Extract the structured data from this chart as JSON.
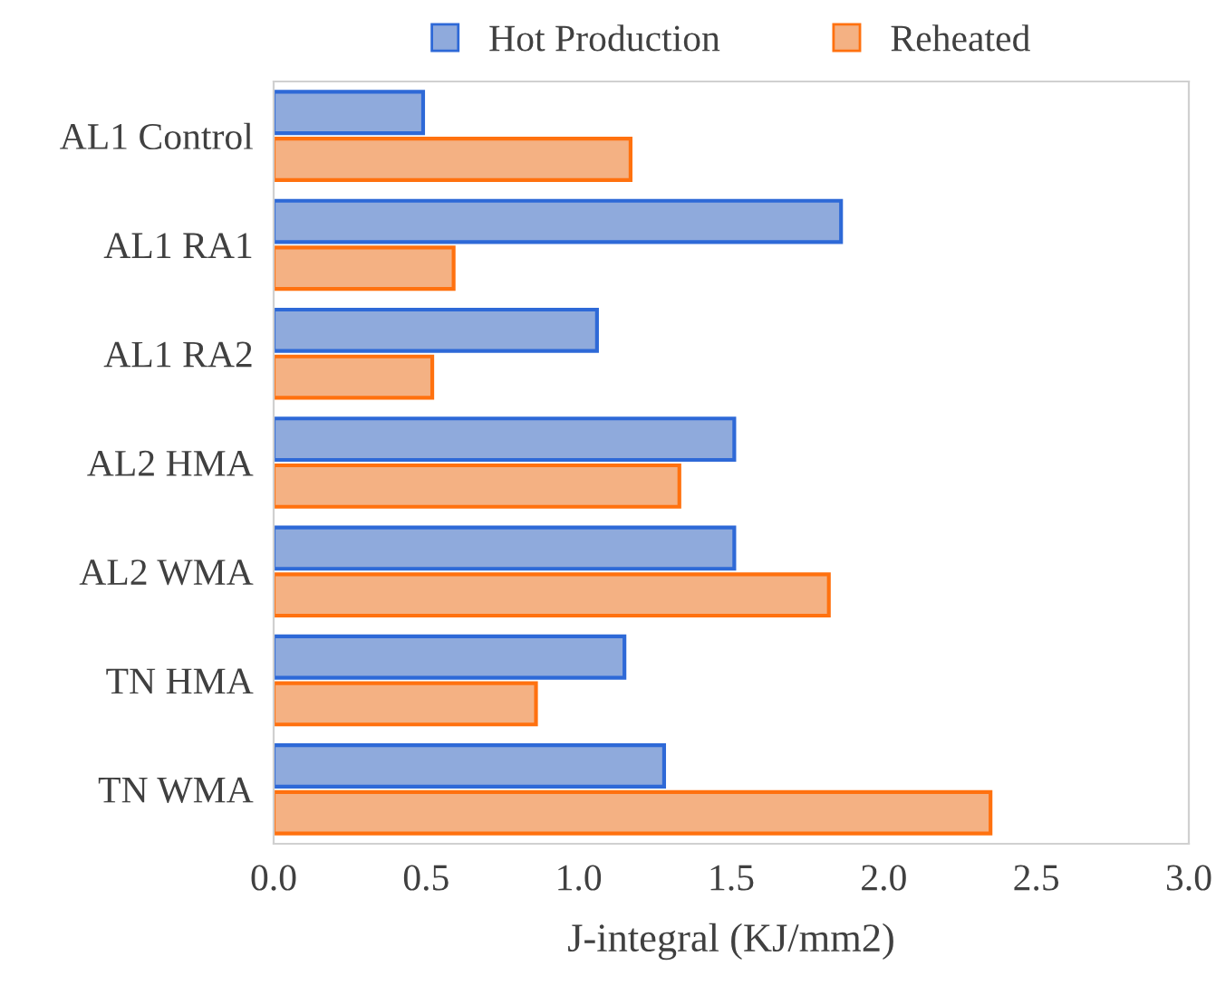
{
  "chart_data": {
    "type": "bar",
    "orientation": "horizontal",
    "xlabel": "J-integral (KJ/mm2)",
    "categories": [
      "AL1 Control",
      "AL1 RA1",
      "AL1 RA2",
      "AL2 HMA",
      "AL2 WMA",
      "TN HMA",
      "TN WMA"
    ],
    "series": [
      {
        "name": "Hot Production",
        "color": "#8faadc",
        "values": [
          0.49,
          1.86,
          1.06,
          1.51,
          1.51,
          1.15,
          1.28
        ]
      },
      {
        "name": "Reheated",
        "color": "#f4b183",
        "values": [
          1.17,
          0.59,
          0.52,
          1.33,
          1.82,
          0.86,
          2.35
        ]
      }
    ],
    "xlim": [
      0,
      3.0
    ],
    "xticks": [
      {
        "value": 0,
        "label": "0.0"
      },
      {
        "value": 0.5,
        "label": "0.5"
      },
      {
        "value": 1.0,
        "label": "1.0"
      },
      {
        "value": 1.5,
        "label": "1.5"
      },
      {
        "value": 2.0,
        "label": "2.0"
      },
      {
        "value": 2.5,
        "label": "2.5"
      },
      {
        "value": 3.0,
        "label": "3.0"
      }
    ],
    "grid": false,
    "legend": "top"
  }
}
